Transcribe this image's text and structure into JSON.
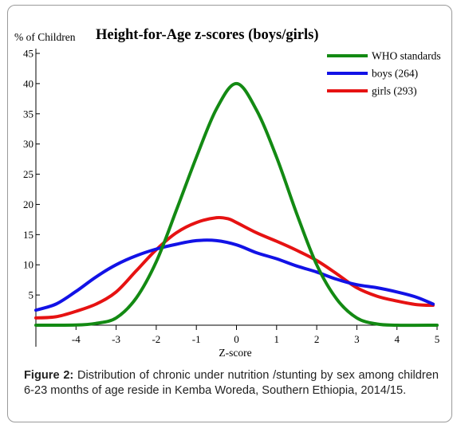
{
  "chart_data": {
    "type": "line",
    "title": "Height-for-Age z-scores (boys/girls)",
    "ylabel": "% of Children",
    "xlabel": "Z-score",
    "xlim": [
      -5,
      5
    ],
    "ylim": [
      0,
      45
    ],
    "x_ticks": [
      -4,
      -3,
      -2,
      -1,
      0,
      1,
      2,
      3,
      4,
      5
    ],
    "y_ticks": [
      5,
      10,
      15,
      20,
      25,
      30,
      35,
      40,
      45
    ],
    "legend_position": "top-right",
    "series": [
      {
        "name": "WHO standards",
        "color": "#138a13",
        "points": [
          [
            -5,
            0
          ],
          [
            -4,
            0.02
          ],
          [
            -3.5,
            0.3
          ],
          [
            -3,
            1.2
          ],
          [
            -2.5,
            4.5
          ],
          [
            -2,
            10.5
          ],
          [
            -1.5,
            19
          ],
          [
            -1,
            27.8
          ],
          [
            -0.5,
            35.8
          ],
          [
            0,
            40
          ],
          [
            0.5,
            35.6
          ],
          [
            1,
            27.8
          ],
          [
            1.5,
            18.5
          ],
          [
            2,
            10
          ],
          [
            2.5,
            4.3
          ],
          [
            3,
            1.2
          ],
          [
            3.5,
            0.2
          ],
          [
            4,
            0
          ],
          [
            5,
            0
          ]
        ]
      },
      {
        "name": "boys (264)",
        "color": "#1212e6",
        "points": [
          [
            -5,
            2.5
          ],
          [
            -4.5,
            3.5
          ],
          [
            -4,
            5.6
          ],
          [
            -3.5,
            8
          ],
          [
            -3,
            10
          ],
          [
            -2.5,
            11.5
          ],
          [
            -2,
            12.6
          ],
          [
            -1.5,
            13.4
          ],
          [
            -1,
            14
          ],
          [
            -0.5,
            14
          ],
          [
            0,
            13.3
          ],
          [
            0.5,
            12
          ],
          [
            1,
            11
          ],
          [
            1.5,
            9.8
          ],
          [
            2,
            8.8
          ],
          [
            2.5,
            7.6
          ],
          [
            3,
            6.7
          ],
          [
            3.5,
            6.2
          ],
          [
            4,
            5.5
          ],
          [
            4.5,
            4.6
          ],
          [
            4.9,
            3.5
          ]
        ]
      },
      {
        "name": "girls (293)",
        "color": "#e61212",
        "points": [
          [
            -5,
            1.2
          ],
          [
            -4.5,
            1.4
          ],
          [
            -4,
            2.3
          ],
          [
            -3.5,
            3.5
          ],
          [
            -3,
            5.5
          ],
          [
            -2.5,
            9
          ],
          [
            -2,
            12.5
          ],
          [
            -1.5,
            15.3
          ],
          [
            -1,
            17
          ],
          [
            -0.5,
            17.8
          ],
          [
            -0.2,
            17.6
          ],
          [
            0,
            17
          ],
          [
            0.5,
            15.3
          ],
          [
            1,
            13.9
          ],
          [
            1.5,
            12.4
          ],
          [
            2,
            10.7
          ],
          [
            2.5,
            8.5
          ],
          [
            3,
            6.2
          ],
          [
            3.5,
            4.8
          ],
          [
            4,
            4
          ],
          [
            4.5,
            3.4
          ],
          [
            4.9,
            3.3
          ]
        ]
      }
    ]
  },
  "caption": {
    "label": "Figure 2:",
    "text": " Distribution of chronic under nutrition /stunting by sex among children 6-23 months of age reside in    Kemba Woreda, Southern Ethiopia, 2014/15."
  }
}
